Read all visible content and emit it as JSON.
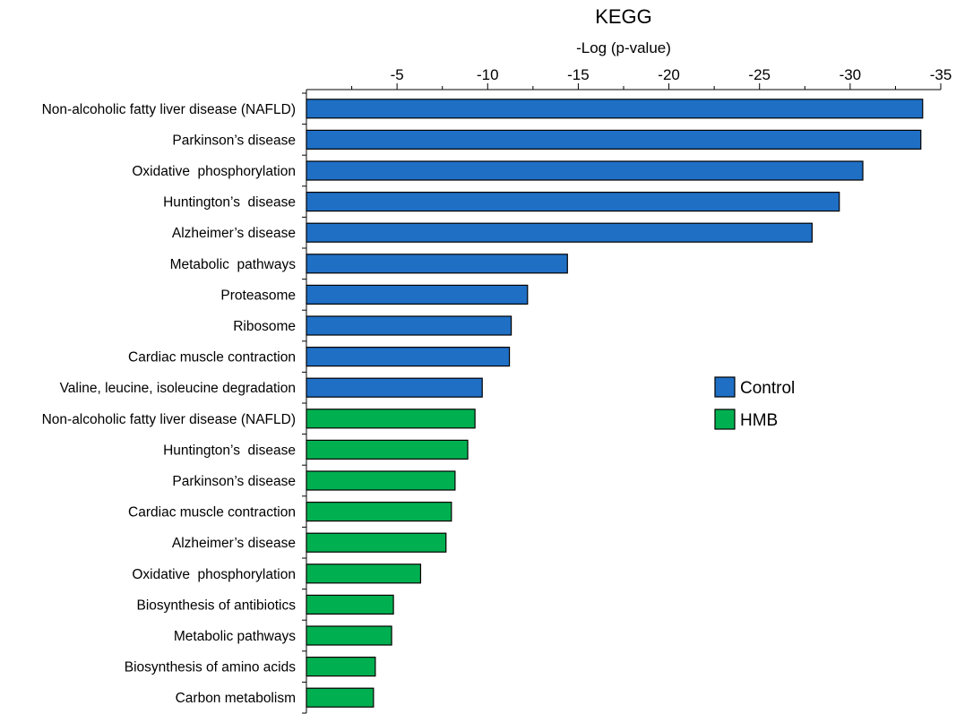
{
  "chart_data": {
    "type": "bar",
    "orientation": "horizontal",
    "title": "KEGG",
    "xlabel": "-Log (p-value)",
    "xlim": [
      0,
      -35
    ],
    "xticks": [
      -5,
      -10,
      -15,
      -20,
      -25,
      -30,
      -35
    ],
    "x_axis_position": "top",
    "grid": false,
    "legend_position": "right",
    "series": [
      {
        "name": "Control",
        "color": "#1F6FC5"
      },
      {
        "name": "HMB",
        "color": "#00B050"
      }
    ],
    "bars": [
      {
        "label": "Non-alcoholic fatty liver disease (NAFLD)",
        "value": -34.0,
        "series": "Control"
      },
      {
        "label": "Parkinson’s disease",
        "value": -33.9,
        "series": "Control"
      },
      {
        "label": "Oxidative  phosphorylation",
        "value": -30.7,
        "series": "Control"
      },
      {
        "label": "Huntington’s  disease",
        "value": -29.4,
        "series": "Control"
      },
      {
        "label": "Alzheimer’s disease",
        "value": -27.9,
        "series": "Control"
      },
      {
        "label": "Metabolic  pathways",
        "value": -14.4,
        "series": "Control"
      },
      {
        "label": "Proteasome",
        "value": -12.2,
        "series": "Control"
      },
      {
        "label": "Ribosome",
        "value": -11.3,
        "series": "Control"
      },
      {
        "label": "Cardiac muscle contraction",
        "value": -11.2,
        "series": "Control"
      },
      {
        "label": "Valine, leucine, isoleucine degradation",
        "value": -9.7,
        "series": "Control"
      },
      {
        "label": "Non-alcoholic fatty liver disease (NAFLD)",
        "value": -9.3,
        "series": "HMB"
      },
      {
        "label": "Huntington’s  disease",
        "value": -8.9,
        "series": "HMB"
      },
      {
        "label": "Parkinson’s disease",
        "value": -8.2,
        "series": "HMB"
      },
      {
        "label": "Cardiac muscle contraction",
        "value": -8.0,
        "series": "HMB"
      },
      {
        "label": "Alzheimer’s disease",
        "value": -7.7,
        "series": "HMB"
      },
      {
        "label": "Oxidative  phosphorylation",
        "value": -6.3,
        "series": "HMB"
      },
      {
        "label": "Biosynthesis of antibiotics",
        "value": -4.8,
        "series": "HMB"
      },
      {
        "label": "Metabolic pathways",
        "value": -4.7,
        "series": "HMB"
      },
      {
        "label": "Biosynthesis of amino acids",
        "value": -3.8,
        "series": "HMB"
      },
      {
        "label": "Carbon metabolism",
        "value": -3.7,
        "series": "HMB"
      }
    ]
  }
}
